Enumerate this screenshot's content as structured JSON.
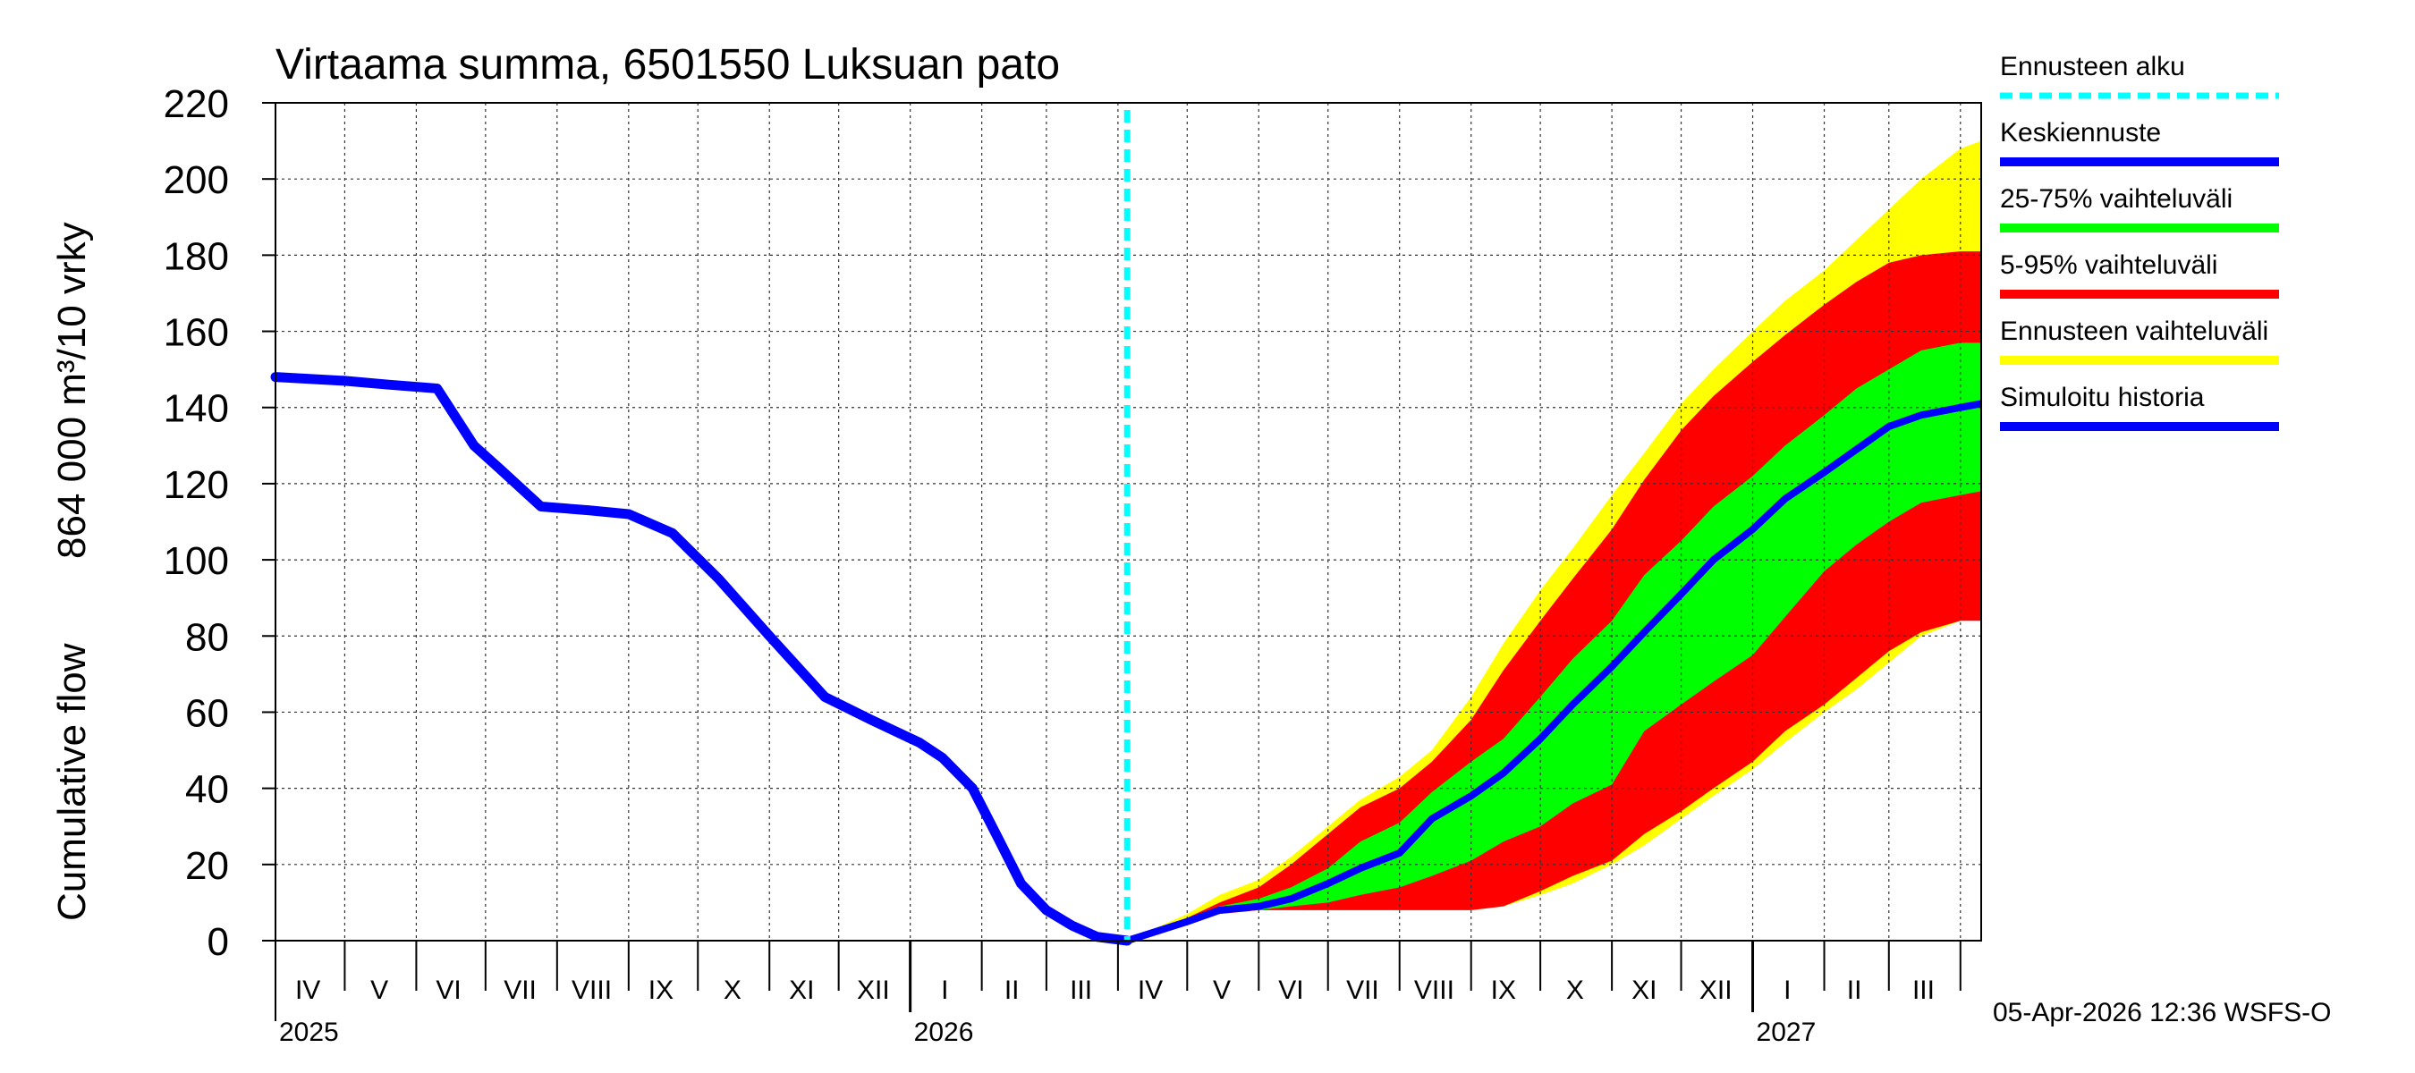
{
  "chart_data": {
    "type": "area",
    "title": "Virtaama summa, 6501550 Luksuan pato",
    "ylabel_fi": "864 000 m³/10 vrky",
    "ylabel_en": "Cumulative flow",
    "ylim": [
      0,
      220
    ],
    "yticks": [
      0,
      20,
      40,
      60,
      80,
      100,
      120,
      140,
      160,
      180,
      200,
      220
    ],
    "xlim": [
      "2025-04-01",
      "2027-04-10"
    ],
    "month_labels": [
      {
        "label": "IV",
        "date": "2025-04-15"
      },
      {
        "label": "V",
        "date": "2025-05-16"
      },
      {
        "label": "VI",
        "date": "2025-06-15"
      },
      {
        "label": "VII",
        "date": "2025-07-16"
      },
      {
        "label": "VIII",
        "date": "2025-08-16"
      },
      {
        "label": "IX",
        "date": "2025-09-15"
      },
      {
        "label": "X",
        "date": "2025-10-16"
      },
      {
        "label": "XI",
        "date": "2025-11-15"
      },
      {
        "label": "XII",
        "date": "2025-12-16"
      },
      {
        "label": "I",
        "date": "2026-01-16"
      },
      {
        "label": "II",
        "date": "2026-02-14"
      },
      {
        "label": "III",
        "date": "2026-03-16"
      },
      {
        "label": "IV",
        "date": "2026-04-15"
      },
      {
        "label": "V",
        "date": "2026-05-16"
      },
      {
        "label": "VI",
        "date": "2026-06-15"
      },
      {
        "label": "VII",
        "date": "2026-07-16"
      },
      {
        "label": "VIII",
        "date": "2026-08-16"
      },
      {
        "label": "IX",
        "date": "2026-09-15"
      },
      {
        "label": "X",
        "date": "2026-10-16"
      },
      {
        "label": "XI",
        "date": "2026-11-15"
      },
      {
        "label": "XII",
        "date": "2026-12-16"
      },
      {
        "label": "I",
        "date": "2027-01-16"
      },
      {
        "label": "II",
        "date": "2027-02-14"
      },
      {
        "label": "III",
        "date": "2027-03-16"
      }
    ],
    "year_labels": [
      {
        "label": "2025",
        "date": "2025-04-01"
      },
      {
        "label": "2026",
        "date": "2026-01-01"
      },
      {
        "label": "2027",
        "date": "2027-01-01"
      }
    ],
    "forecast_start": "2026-04-05",
    "history": {
      "name": "Simuloitu historia",
      "x": [
        "2025-04-01",
        "2025-05-01",
        "2025-05-20",
        "2025-06-10",
        "2025-06-26",
        "2025-07-07",
        "2025-07-25",
        "2025-08-15",
        "2025-09-01",
        "2025-09-20",
        "2025-10-10",
        "2025-11-01",
        "2025-11-25",
        "2025-12-15",
        "2026-01-05",
        "2026-01-15",
        "2026-01-28",
        "2026-02-08",
        "2026-02-18",
        "2026-03-01",
        "2026-03-12",
        "2026-03-23",
        "2026-04-05"
      ],
      "values": [
        148,
        147,
        146,
        145,
        130,
        124,
        114,
        113,
        112,
        107,
        95,
        80,
        64,
        58,
        52,
        48,
        40,
        27,
        15,
        8,
        4,
        1,
        0
      ]
    },
    "forecast_x": [
      "2026-04-05",
      "2026-05-01",
      "2026-05-15",
      "2026-06-01",
      "2026-06-15",
      "2026-07-01",
      "2026-07-15",
      "2026-08-01",
      "2026-08-15",
      "2026-09-01",
      "2026-09-15",
      "2026-10-01",
      "2026-10-15",
      "2026-11-01",
      "2026-11-15",
      "2026-12-01",
      "2026-12-15",
      "2027-01-01",
      "2027-01-15",
      "2027-02-01",
      "2027-02-15",
      "2027-03-01",
      "2027-03-15",
      "2027-04-01",
      "2027-04-10"
    ],
    "bands": [
      {
        "name": "Ennusteen vaihteluväli",
        "color": "#ffff00",
        "low": [
          0,
          4,
          7,
          8,
          8,
          8,
          8,
          8,
          8,
          8,
          9,
          12,
          15,
          20,
          25,
          32,
          38,
          45,
          52,
          60,
          66,
          73,
          80,
          84,
          85
        ],
        "high": [
          0,
          7,
          12,
          16,
          22,
          30,
          37,
          43,
          50,
          64,
          78,
          92,
          103,
          117,
          128,
          141,
          150,
          160,
          168,
          176,
          184,
          192,
          200,
          208,
          210
        ]
      },
      {
        "name": "5-95% vaihteluväli",
        "color": "#ff0000",
        "low": [
          0,
          5,
          7,
          8,
          8,
          8,
          8,
          8,
          8,
          8,
          9,
          13,
          17,
          21,
          28,
          34,
          40,
          47,
          55,
          62,
          69,
          76,
          81,
          84,
          84
        ],
        "high": [
          0,
          6,
          10,
          14,
          20,
          28,
          35,
          40,
          47,
          58,
          71,
          84,
          95,
          108,
          121,
          134,
          143,
          152,
          159,
          167,
          173,
          178,
          180,
          181,
          181
        ]
      },
      {
        "name": "25-75% vaihteluväli",
        "color": "#00ff00",
        "low": [
          0,
          5,
          8,
          8,
          9,
          10,
          12,
          14,
          17,
          21,
          26,
          30,
          36,
          41,
          55,
          62,
          68,
          75,
          85,
          97,
          104,
          110,
          115,
          117,
          118
        ],
        "high": [
          0,
          5,
          9,
          11,
          14,
          19,
          26,
          31,
          39,
          47,
          53,
          64,
          74,
          84,
          96,
          105,
          114,
          122,
          130,
          138,
          145,
          150,
          155,
          157,
          157
        ]
      }
    ],
    "median": {
      "name": "Keskiennuste",
      "values": [
        0,
        5,
        8,
        9,
        11,
        15,
        19,
        23,
        32,
        38,
        44,
        53,
        62,
        72,
        81,
        91,
        100,
        108,
        116,
        123,
        129,
        135,
        138,
        140,
        141
      ]
    },
    "legend": [
      {
        "label": "Ennusteen alku",
        "color": "#00ffff",
        "style": "dashed"
      },
      {
        "label": "Keskiennuste",
        "color": "#0000ff",
        "style": "solid"
      },
      {
        "label": "25-75% vaihteluväli",
        "color": "#00ff00",
        "style": "solid"
      },
      {
        "label": "5-95% vaihteluväli",
        "color": "#ff0000",
        "style": "solid"
      },
      {
        "label": "Ennusteen vaihteluväli",
        "color": "#ffff00",
        "style": "solid"
      },
      {
        "label": "Simuloitu historia",
        "color": "#0000ff",
        "style": "solid"
      }
    ],
    "legend_placement": "right",
    "grid": true
  },
  "footer": "05-Apr-2026 12:36 WSFS-O"
}
